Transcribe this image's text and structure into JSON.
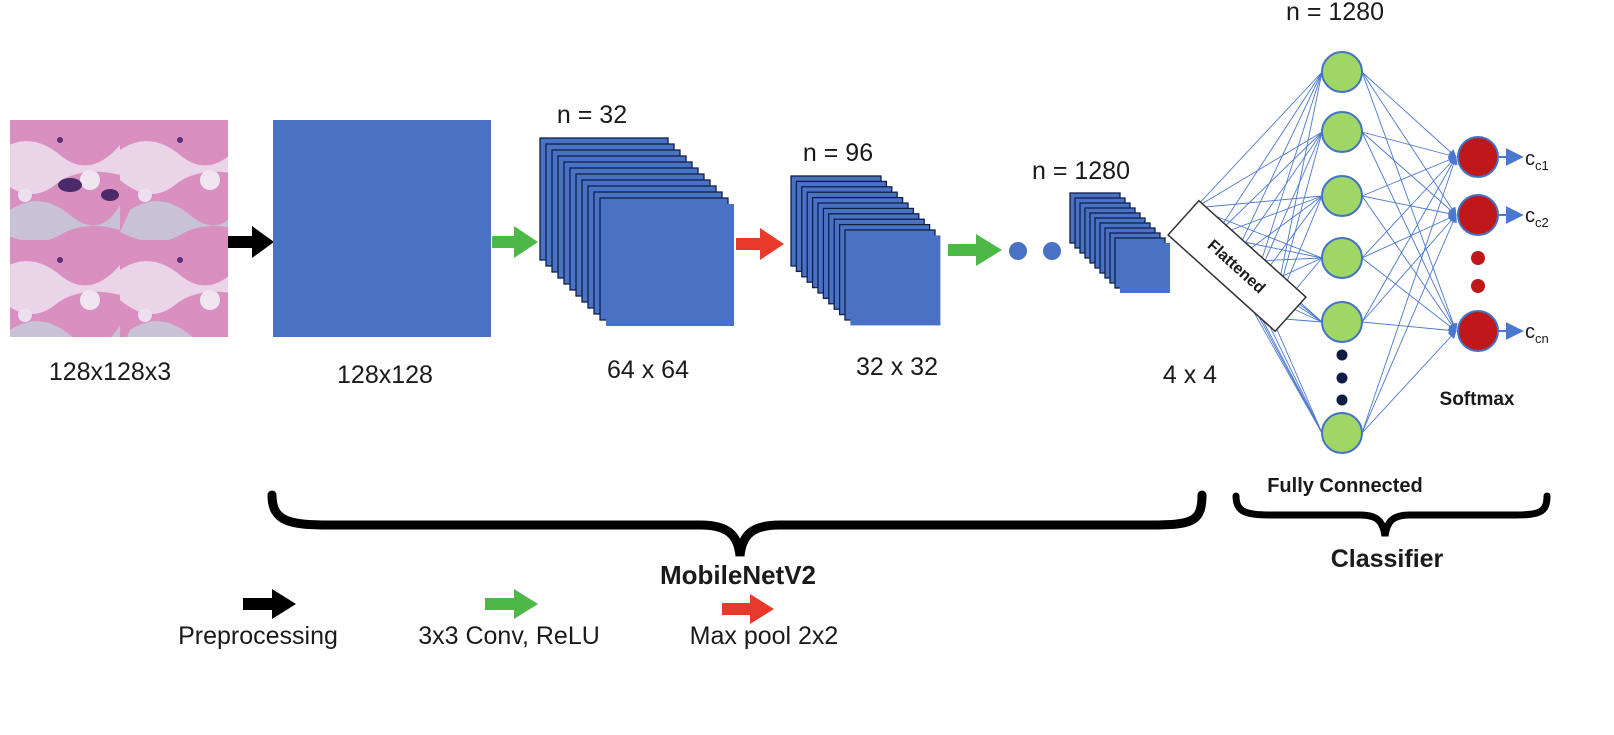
{
  "input": {
    "size_label": "128x128x3"
  },
  "stages": [
    {
      "size_label": "128x128",
      "count_label": ""
    },
    {
      "size_label": "64 x 64",
      "count_label": "n = 32"
    },
    {
      "size_label": "32 x 32",
      "count_label": "n = 96"
    },
    {
      "size_label": "4 x 4",
      "count_label": "n = 1280"
    }
  ],
  "flattened_label": "Flattened",
  "fc": {
    "count_label": "n = 1280",
    "title": "Fully Connected"
  },
  "softmax": {
    "label": "Softmax",
    "outputs": [
      "c1",
      "c2",
      "cn"
    ]
  },
  "braces": {
    "backbone": "MobileNetV2",
    "classifier": "Classifier"
  },
  "legend": [
    {
      "label": "Preprocessing",
      "color": "#000000"
    },
    {
      "label": "3x3 Conv, ReLU",
      "color": "#4db748"
    },
    {
      "label": "Max pool 2x2",
      "color": "#e8392b"
    }
  ],
  "colors": {
    "feature_map": "#4a72c4",
    "fc_node": "#9fd665",
    "fc_node_stroke": "#4472c4",
    "softmax_node": "#c0181a",
    "connection": "#4a78d0",
    "ellipsis_dot": "#0d1c44"
  }
}
